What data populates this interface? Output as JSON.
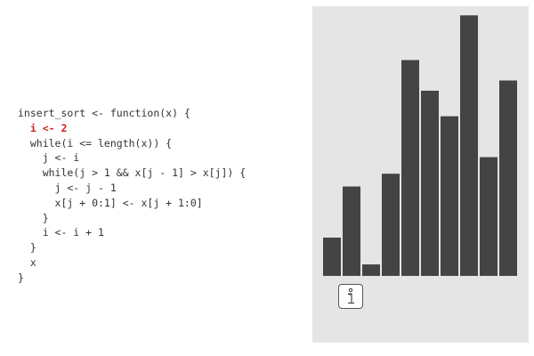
{
  "code": {
    "lines": [
      "insert_sort <- function(x) {",
      "  i <- 2",
      "  while(i <= length(x)) {",
      "    j <- i",
      "    while(j > 1 && x[j - 1] > x[j]) {",
      "      j <- j - 1",
      "      x[j + 0:1] <- x[j + 1:0]",
      "    }",
      "    i <- i + 1",
      "  }",
      "  x",
      "}"
    ],
    "highlighted_line": 1,
    "highlight_color": "#cc1f1f"
  },
  "visualization": {
    "background_color": "#e5e5e5",
    "bar_color": "#444444",
    "max_value": 10,
    "bar_values": [
      1.5,
      3.5,
      0.45,
      4.0,
      8.45,
      7.25,
      6.25,
      10.2,
      4.65,
      7.65
    ]
  },
  "info_button": {
    "icon": "info-icon"
  }
}
